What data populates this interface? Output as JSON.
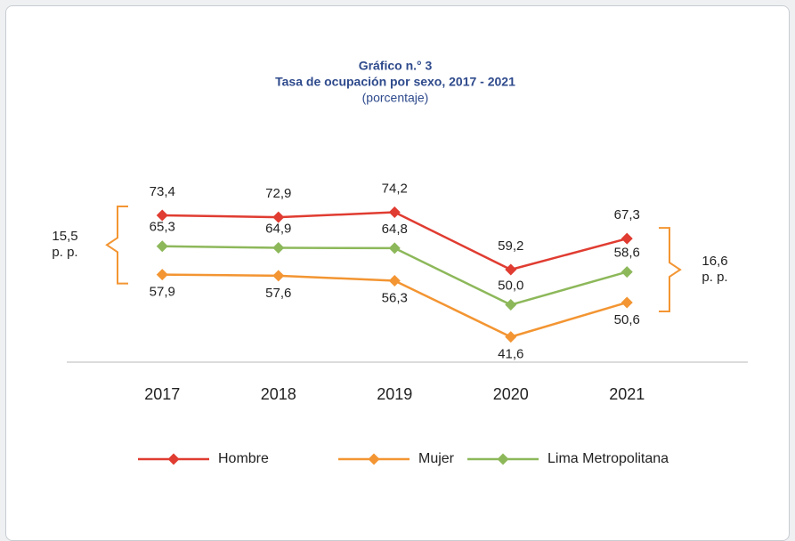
{
  "chart_data": {
    "type": "line",
    "title": "Gráfico n.° 3",
    "subtitle": "Tasa de ocupación por sexo, 2017 - 2021",
    "unit_label": "(porcentaje)",
    "categories": [
      "2017",
      "2018",
      "2019",
      "2020",
      "2021"
    ],
    "series": [
      {
        "name": "Hombre",
        "color": "#e03c31",
        "values": [
          73.4,
          72.9,
          74.2,
          59.2,
          67.3
        ],
        "value_labels": [
          "73,4",
          "72,9",
          "74,2",
          "59,2",
          "67,3"
        ]
      },
      {
        "name": "Mujer",
        "color": "#f39532",
        "values": [
          57.9,
          57.6,
          56.3,
          41.6,
          50.6
        ],
        "value_labels": [
          "57,9",
          "57,6",
          "56,3",
          "41,6",
          "50,6"
        ]
      },
      {
        "name": "Lima Metropolitana",
        "color": "#8db85a",
        "values": [
          65.3,
          64.9,
          64.8,
          50.0,
          58.6
        ],
        "value_labels": [
          "65,3",
          "64,9",
          "64,8",
          "50,0",
          "58,6"
        ]
      }
    ],
    "annotations": [
      {
        "lines": [
          "15,5",
          "p. p."
        ]
      },
      {
        "lines": [
          "16,6",
          "p. p."
        ]
      }
    ],
    "ylim": [
      35,
      80
    ],
    "legend": "bottom"
  }
}
